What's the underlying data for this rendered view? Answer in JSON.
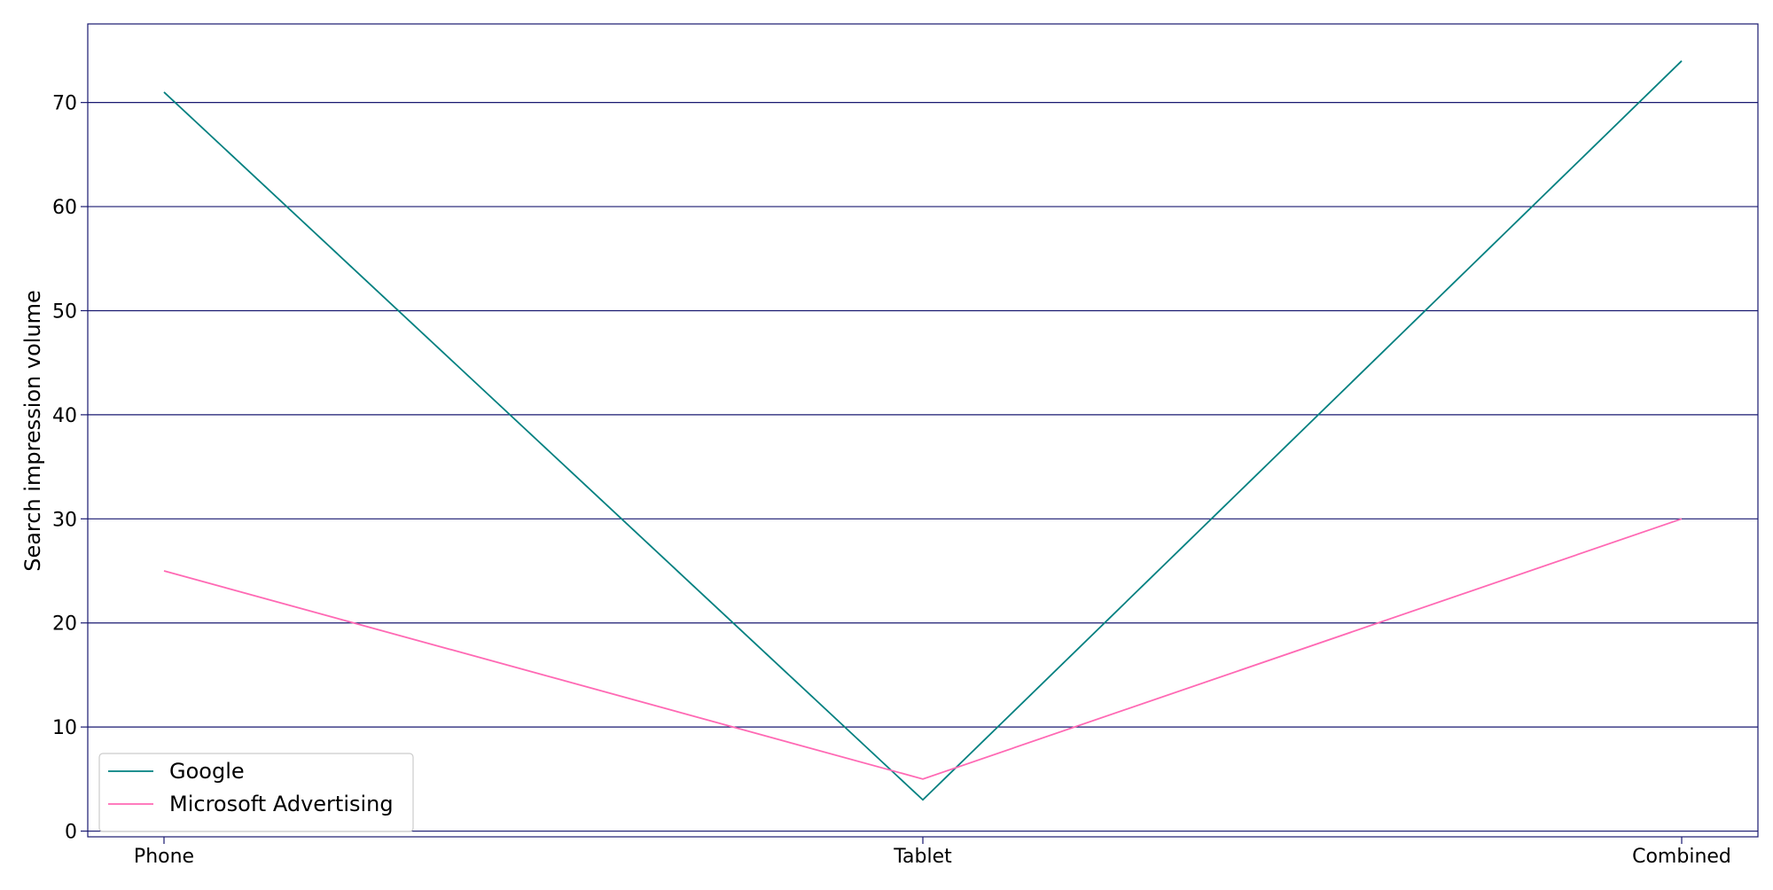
{
  "chart_data": {
    "type": "line",
    "title": "",
    "xlabel": "",
    "ylabel": "Search impression volume",
    "categories": [
      "Phone",
      "Tablet",
      "Combined"
    ],
    "series": [
      {
        "name": "Google",
        "values": [
          71,
          3,
          74
        ],
        "color": "#008080"
      },
      {
        "name": "Microsoft Advertising",
        "values": [
          25,
          5,
          30
        ],
        "color": "#ff69b4"
      }
    ],
    "yticks": [
      0,
      10,
      20,
      30,
      40,
      50,
      60,
      70
    ],
    "ylim": [
      -0.55,
      77.55
    ],
    "grid": {
      "axis": "y",
      "color": "#191970"
    },
    "legend": {
      "placement": "lower-left"
    },
    "axis_color": "#191970"
  }
}
